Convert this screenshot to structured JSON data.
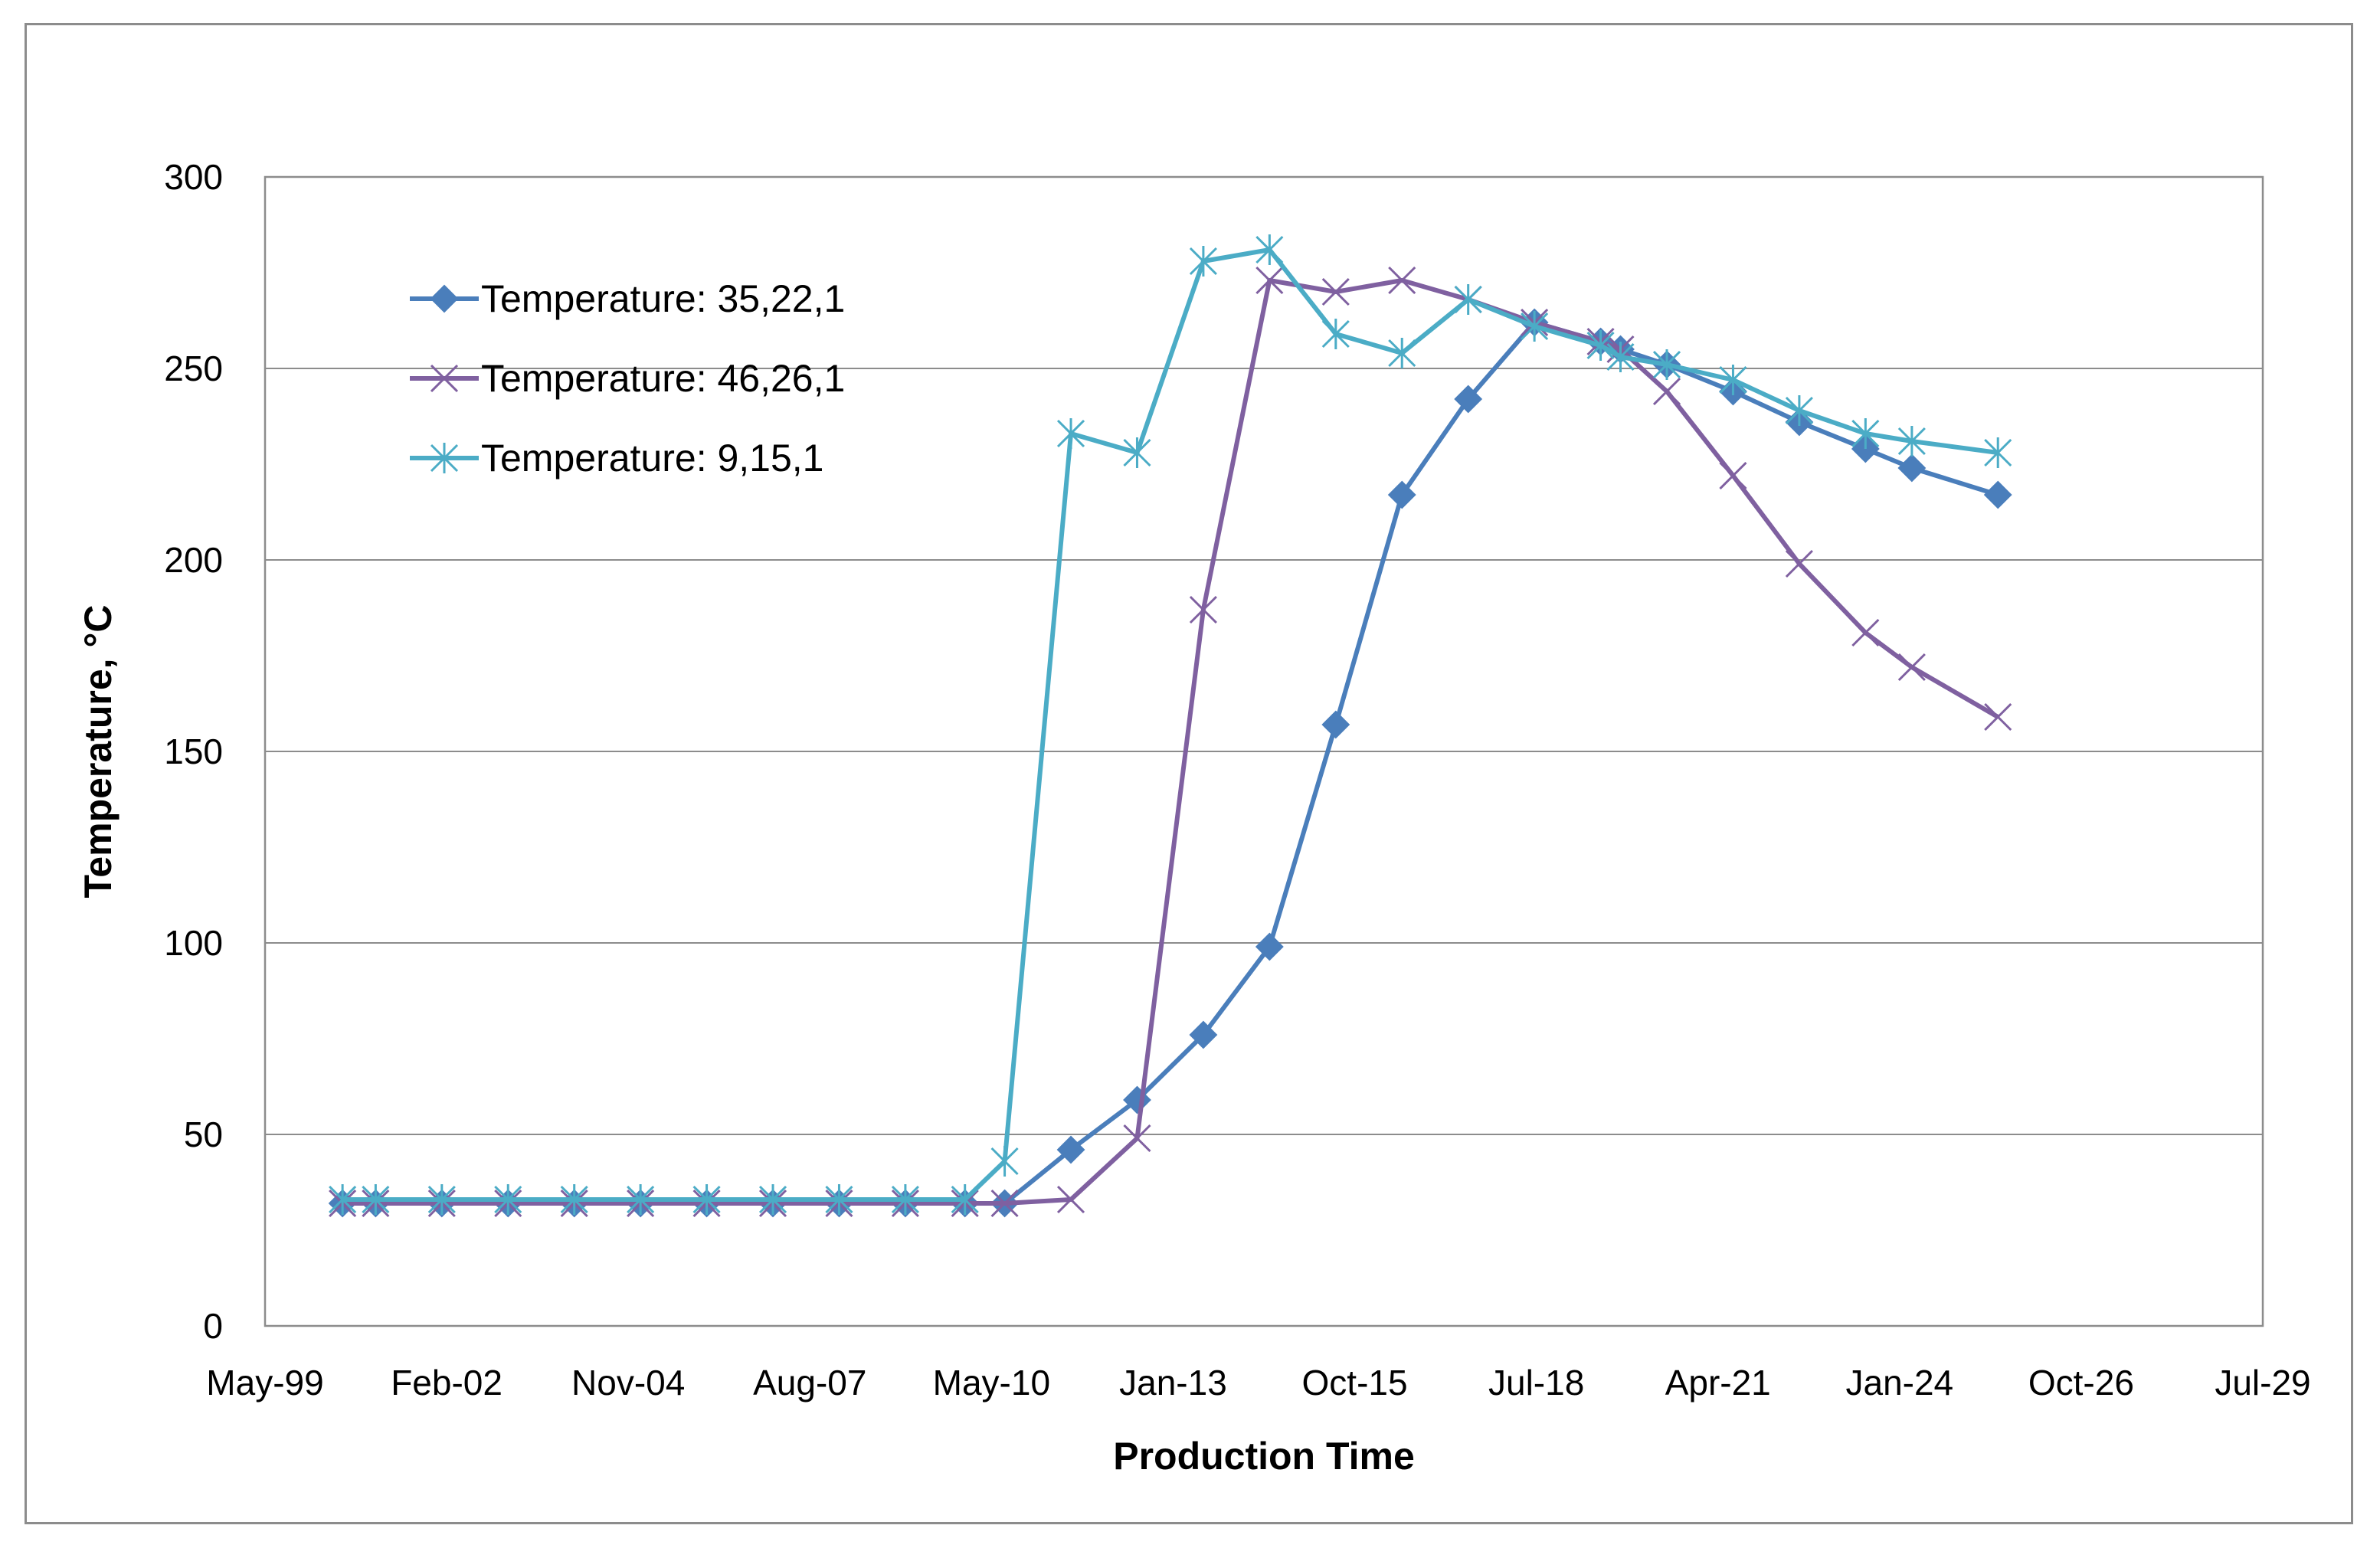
{
  "chart_data": {
    "type": "line",
    "title": "",
    "xlabel": "Production Time",
    "ylabel": "Temperature, °C",
    "ylim": [
      0,
      300
    ],
    "y_ticks": [
      0,
      50,
      100,
      150,
      200,
      250,
      300
    ],
    "x_ticks": [
      "May-99",
      "Feb-02",
      "Nov-04",
      "Aug-07",
      "May-10",
      "Jan-13",
      "Oct-15",
      "Jul-18",
      "Apr-21",
      "Jan-24",
      "Oct-26",
      "Jul-29"
    ],
    "xlim_years": [
      1999.33,
      2029.5
    ],
    "grid": "horizontal",
    "legend_position": "top-left",
    "series": [
      {
        "name": "Temperature: 35,22,1",
        "color": "#4a7ebb",
        "marker": "diamond",
        "x": [
          2000.5,
          2001.0,
          2002.0,
          2003.0,
          2004.0,
          2005.0,
          2006.0,
          2007.0,
          2008.0,
          2009.0,
          2009.9,
          2010.5,
          2011.5,
          2012.5,
          2013.5,
          2014.5,
          2015.5,
          2016.5,
          2017.5,
          2018.5,
          2019.5,
          2019.8,
          2020.5,
          2021.5,
          2022.5,
          2023.5,
          2024.2,
          2025.5
        ],
        "y": [
          32,
          32,
          32,
          32,
          32,
          32,
          32,
          32,
          32,
          32,
          32,
          32,
          46,
          59,
          76,
          99,
          157,
          217,
          242,
          262,
          257,
          255,
          251,
          244,
          236,
          229,
          224,
          217
        ]
      },
      {
        "name": "Temperature: 46,26,1",
        "color": "#7f60a0",
        "marker": "x",
        "x": [
          2000.5,
          2001.0,
          2002.0,
          2003.0,
          2004.0,
          2005.0,
          2006.0,
          2007.0,
          2008.0,
          2009.0,
          2009.9,
          2010.5,
          2011.5,
          2012.5,
          2013.5,
          2014.5,
          2015.5,
          2016.5,
          2017.5,
          2018.5,
          2019.5,
          2019.8,
          2020.5,
          2021.5,
          2022.5,
          2023.5,
          2024.2,
          2025.5
        ],
        "y": [
          32,
          32,
          32,
          32,
          32,
          32,
          32,
          32,
          32,
          32,
          32,
          32,
          33,
          49,
          187,
          273,
          270,
          273,
          268,
          262,
          257,
          255,
          244,
          222,
          199,
          181,
          172,
          159
        ]
      },
      {
        "name": "Temperature: 9,15,1",
        "color": "#4bacc6",
        "marker": "star",
        "x": [
          2000.5,
          2001.0,
          2002.0,
          2003.0,
          2004.0,
          2005.0,
          2006.0,
          2007.0,
          2008.0,
          2009.0,
          2009.9,
          2010.5,
          2011.5,
          2012.5,
          2013.5,
          2014.5,
          2015.5,
          2016.5,
          2017.5,
          2018.5,
          2019.5,
          2019.8,
          2020.5,
          2021.5,
          2022.5,
          2023.5,
          2024.2,
          2025.5
        ],
        "y": [
          33,
          33,
          33,
          33,
          33,
          33,
          33,
          33,
          33,
          33,
          33,
          43,
          233,
          228,
          278,
          281,
          259,
          254,
          268,
          261,
          256,
          253,
          251,
          247,
          239,
          233,
          231,
          228
        ]
      }
    ]
  }
}
